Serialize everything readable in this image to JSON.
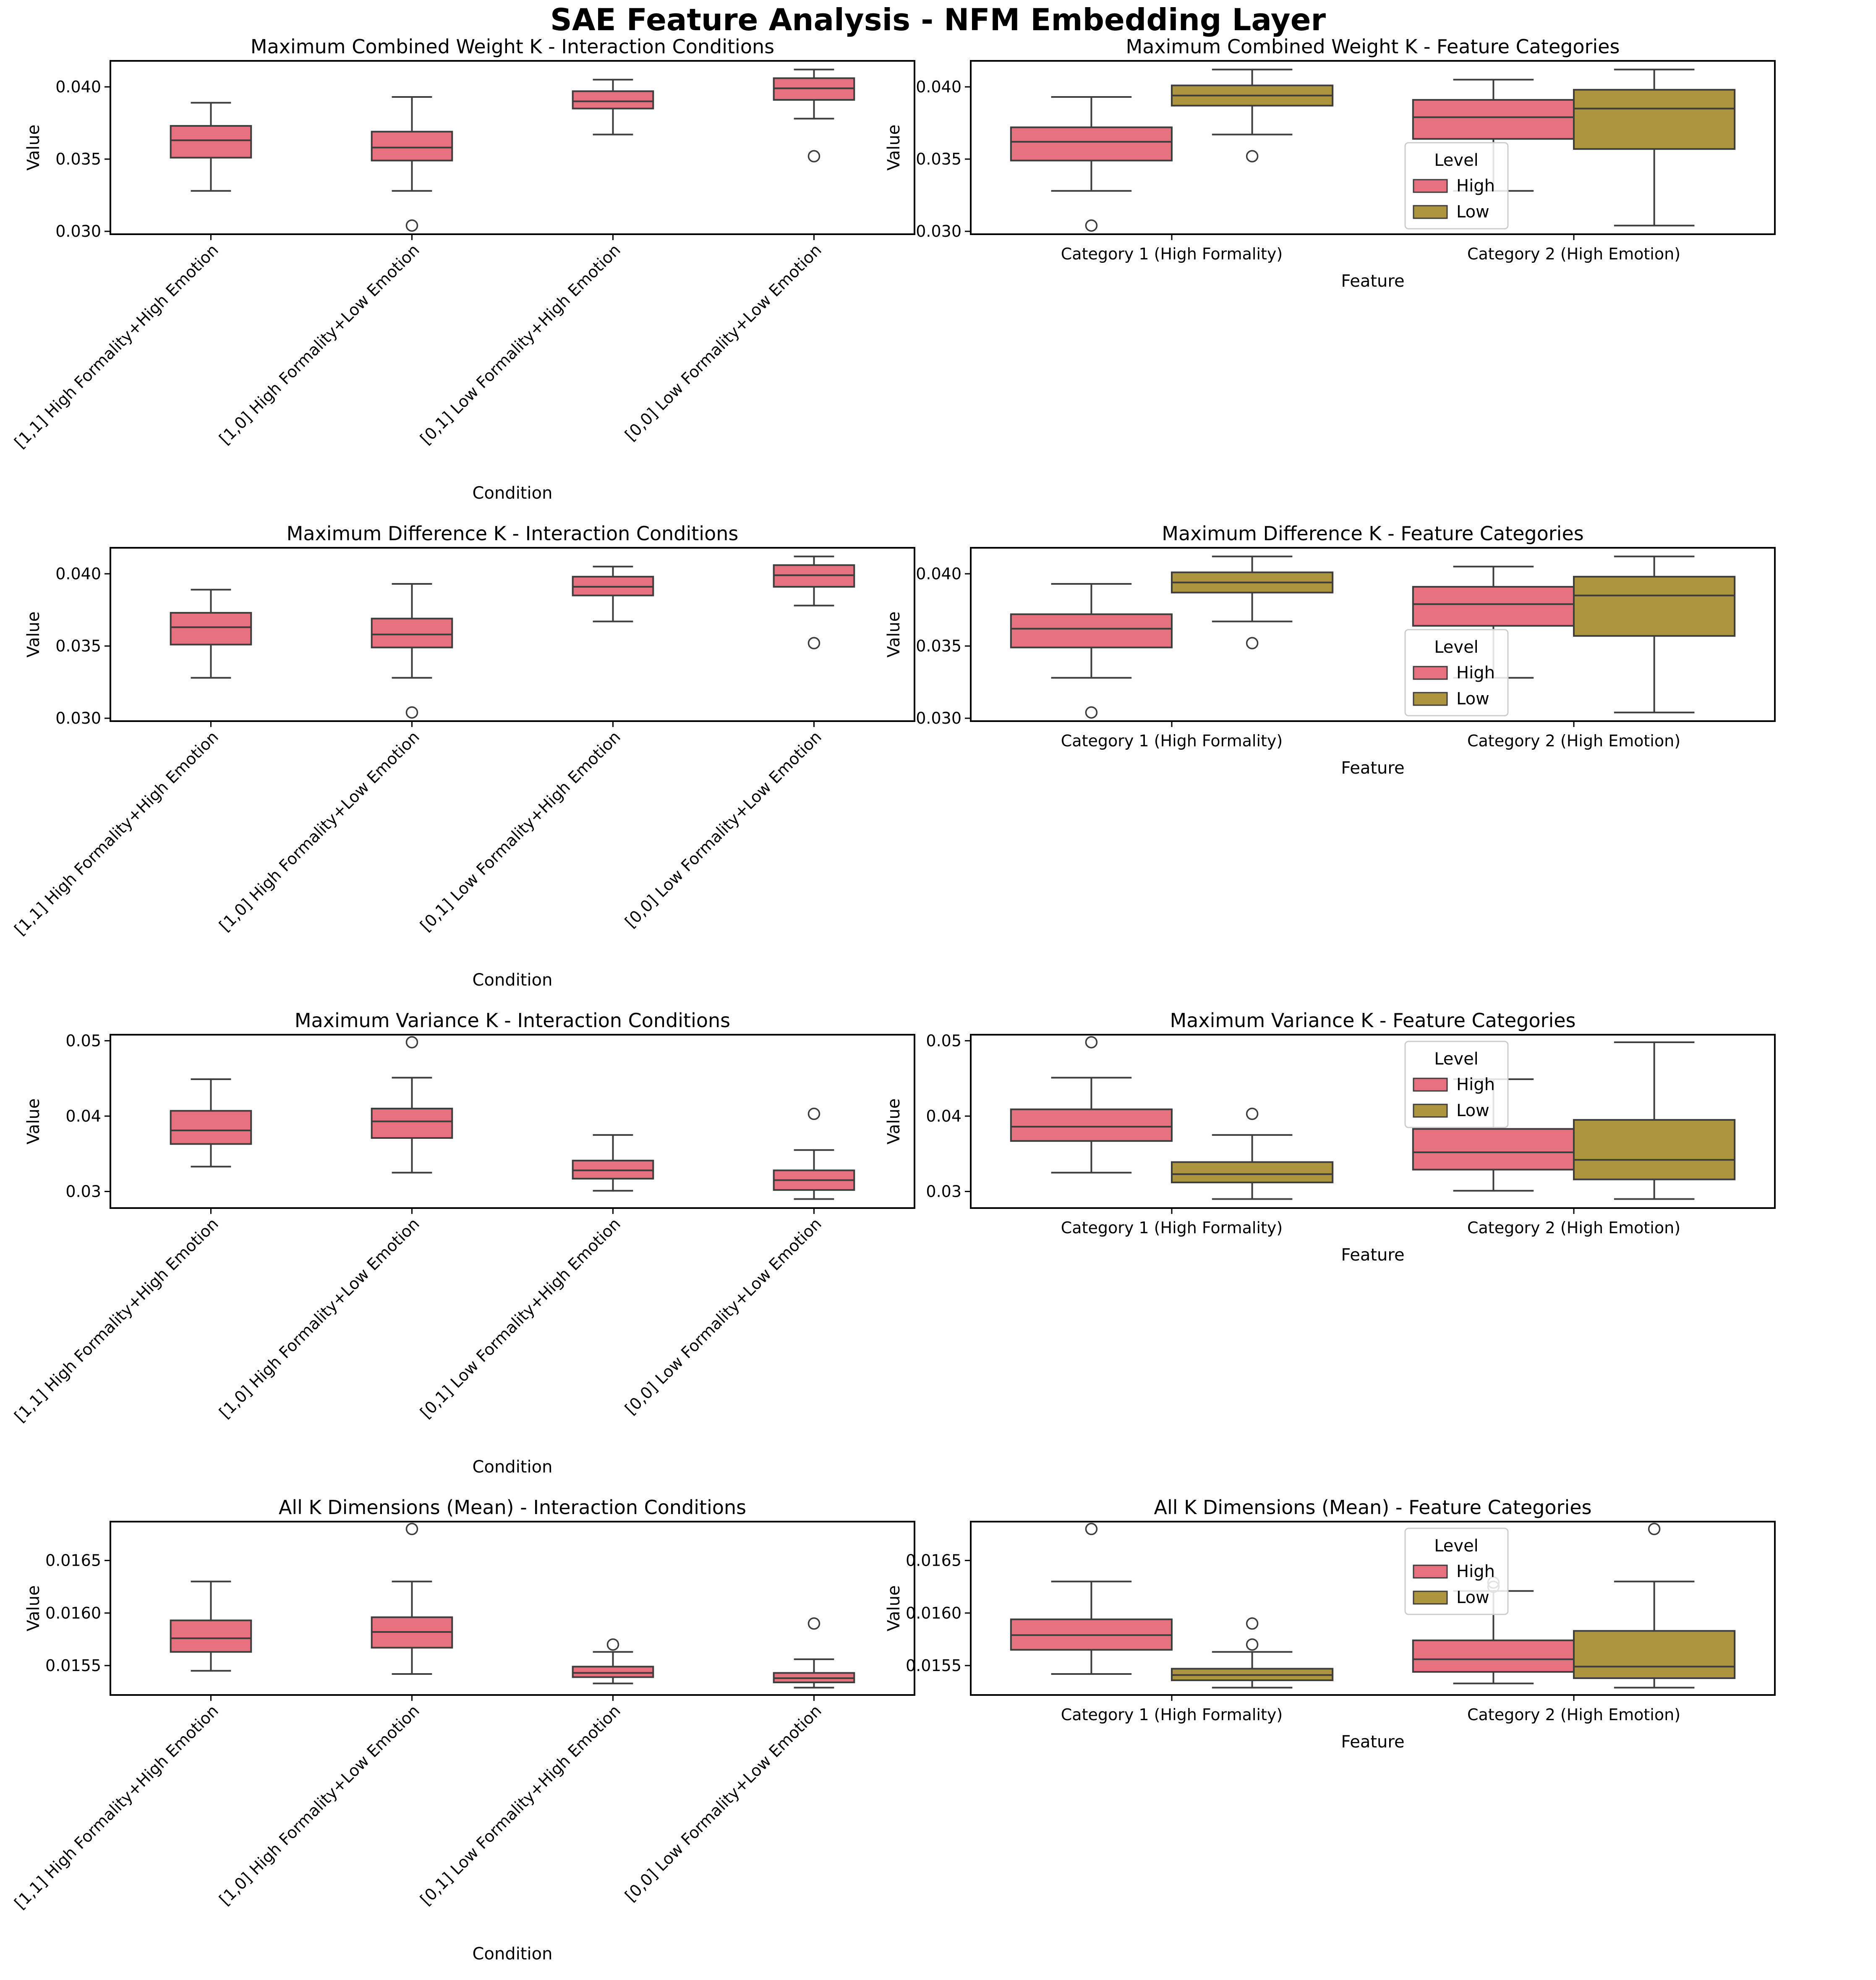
{
  "suptitle": "SAE Feature Analysis - NFM Embedding Layer",
  "colors": {
    "high": "#e8717f",
    "low": "#ad943e",
    "line": "#3d3d3d",
    "axes": "#000000"
  },
  "chart_data": [
    {
      "type": "box",
      "id": "r0c0",
      "title": "Maximum Combined Weight K - Interaction Conditions",
      "xlabel": "Condition",
      "ylabel": "Value",
      "ylim": [
        0.0298,
        0.0418
      ],
      "yticks": [
        "0.030",
        "0.035",
        "0.040"
      ],
      "ytick_values": [
        0.03,
        0.035,
        0.04
      ],
      "rotate_xticks": true,
      "categories": [
        "[1,1] High Formality+High Emotion",
        "[1,0] High Formality+Low Emotion",
        "[0,1] Low Formality+High Emotion",
        "[0,0] Low Formality+Low Emotion"
      ],
      "boxes": [
        {
          "cat": 0,
          "hue": "high",
          "whislo": 0.0328,
          "q1": 0.0351,
          "med": 0.0363,
          "q3": 0.0373,
          "whishi": 0.0389,
          "fliers": []
        },
        {
          "cat": 1,
          "hue": "high",
          "whislo": 0.0328,
          "q1": 0.0349,
          "med": 0.0358,
          "q3": 0.0369,
          "whishi": 0.0393,
          "fliers": [
            0.0304
          ]
        },
        {
          "cat": 2,
          "hue": "high",
          "whislo": 0.0367,
          "q1": 0.0385,
          "med": 0.039,
          "q3": 0.0397,
          "whishi": 0.0405,
          "fliers": []
        },
        {
          "cat": 3,
          "hue": "high",
          "whislo": 0.0378,
          "q1": 0.0391,
          "med": 0.0399,
          "q3": 0.0406,
          "whishi": 0.0412,
          "fliers": [
            0.0352
          ]
        }
      ]
    },
    {
      "type": "box",
      "id": "r0c1",
      "title": "Maximum Combined Weight K - Feature Categories",
      "xlabel": "Feature",
      "ylabel": "Value",
      "ylim": [
        0.0298,
        0.0418
      ],
      "yticks": [
        "0.030",
        "0.035",
        "0.040"
      ],
      "ytick_values": [
        0.03,
        0.035,
        0.04
      ],
      "rotate_xticks": false,
      "categories": [
        "Category 1 (High Formality)",
        "Category 2 (High Emotion)"
      ],
      "legend": {
        "title": "Level",
        "entries": [
          "High",
          "Low"
        ]
      },
      "boxes": [
        {
          "cat": 0,
          "hue": "high",
          "whislo": 0.0328,
          "q1": 0.0349,
          "med": 0.0362,
          "q3": 0.0372,
          "whishi": 0.0393,
          "fliers": [
            0.0304
          ]
        },
        {
          "cat": 0,
          "hue": "low",
          "whislo": 0.0367,
          "q1": 0.0387,
          "med": 0.0394,
          "q3": 0.0401,
          "whishi": 0.0412,
          "fliers": [
            0.0352
          ]
        },
        {
          "cat": 1,
          "hue": "high",
          "whislo": 0.0328,
          "q1": 0.0364,
          "med": 0.0379,
          "q3": 0.0391,
          "whishi": 0.0405,
          "fliers": []
        },
        {
          "cat": 1,
          "hue": "low",
          "whislo": 0.0304,
          "q1": 0.0357,
          "med": 0.0385,
          "q3": 0.0398,
          "whishi": 0.0412,
          "fliers": []
        }
      ]
    },
    {
      "type": "box",
      "id": "r1c0",
      "title": "Maximum Difference K - Interaction Conditions",
      "xlabel": "Condition",
      "ylabel": "Value",
      "ylim": [
        0.0298,
        0.0418
      ],
      "yticks": [
        "0.030",
        "0.035",
        "0.040"
      ],
      "ytick_values": [
        0.03,
        0.035,
        0.04
      ],
      "rotate_xticks": true,
      "categories": [
        "[1,1] High Formality+High Emotion",
        "[1,0] High Formality+Low Emotion",
        "[0,1] Low Formality+High Emotion",
        "[0,0] Low Formality+Low Emotion"
      ],
      "boxes": [
        {
          "cat": 0,
          "hue": "high",
          "whislo": 0.0328,
          "q1": 0.0351,
          "med": 0.0363,
          "q3": 0.0373,
          "whishi": 0.0389,
          "fliers": []
        },
        {
          "cat": 1,
          "hue": "high",
          "whislo": 0.0328,
          "q1": 0.0349,
          "med": 0.0358,
          "q3": 0.0369,
          "whishi": 0.0393,
          "fliers": [
            0.0304
          ]
        },
        {
          "cat": 2,
          "hue": "high",
          "whislo": 0.0367,
          "q1": 0.0385,
          "med": 0.0391,
          "q3": 0.0398,
          "whishi": 0.0405,
          "fliers": []
        },
        {
          "cat": 3,
          "hue": "high",
          "whislo": 0.0378,
          "q1": 0.0391,
          "med": 0.0399,
          "q3": 0.0406,
          "whishi": 0.0412,
          "fliers": [
            0.0352
          ]
        }
      ]
    },
    {
      "type": "box",
      "id": "r1c1",
      "title": "Maximum Difference K - Feature Categories",
      "xlabel": "Feature",
      "ylabel": "Value",
      "ylim": [
        0.0298,
        0.0418
      ],
      "yticks": [
        "0.030",
        "0.035",
        "0.040"
      ],
      "ytick_values": [
        0.03,
        0.035,
        0.04
      ],
      "rotate_xticks": false,
      "categories": [
        "Category 1 (High Formality)",
        "Category 2 (High Emotion)"
      ],
      "legend": {
        "title": "Level",
        "entries": [
          "High",
          "Low"
        ]
      },
      "boxes": [
        {
          "cat": 0,
          "hue": "high",
          "whislo": 0.0328,
          "q1": 0.0349,
          "med": 0.0362,
          "q3": 0.0372,
          "whishi": 0.0393,
          "fliers": [
            0.0304
          ]
        },
        {
          "cat": 0,
          "hue": "low",
          "whislo": 0.0367,
          "q1": 0.0387,
          "med": 0.0394,
          "q3": 0.0401,
          "whishi": 0.0412,
          "fliers": [
            0.0352
          ]
        },
        {
          "cat": 1,
          "hue": "high",
          "whislo": 0.0328,
          "q1": 0.0364,
          "med": 0.0379,
          "q3": 0.0391,
          "whishi": 0.0405,
          "fliers": []
        },
        {
          "cat": 1,
          "hue": "low",
          "whislo": 0.0304,
          "q1": 0.0357,
          "med": 0.0385,
          "q3": 0.0398,
          "whishi": 0.0412,
          "fliers": []
        }
      ]
    },
    {
      "type": "box",
      "id": "r2c0",
      "title": "Maximum Variance K - Interaction Conditions",
      "xlabel": "Condition",
      "ylabel": "Value",
      "ylim": [
        0.0278,
        0.0508
      ],
      "yticks": [
        "0.03",
        "0.04",
        "0.05"
      ],
      "ytick_values": [
        0.03,
        0.04,
        0.05
      ],
      "rotate_xticks": true,
      "categories": [
        "[1,1] High Formality+High Emotion",
        "[1,0] High Formality+Low Emotion",
        "[0,1] Low Formality+High Emotion",
        "[0,0] Low Formality+Low Emotion"
      ],
      "boxes": [
        {
          "cat": 0,
          "hue": "high",
          "whislo": 0.0333,
          "q1": 0.0363,
          "med": 0.0381,
          "q3": 0.0407,
          "whishi": 0.0449,
          "fliers": []
        },
        {
          "cat": 1,
          "hue": "high",
          "whislo": 0.0325,
          "q1": 0.0371,
          "med": 0.0393,
          "q3": 0.041,
          "whishi": 0.0451,
          "fliers": [
            0.0498
          ]
        },
        {
          "cat": 2,
          "hue": "high",
          "whislo": 0.0301,
          "q1": 0.0317,
          "med": 0.0328,
          "q3": 0.0341,
          "whishi": 0.0375,
          "fliers": []
        },
        {
          "cat": 3,
          "hue": "high",
          "whislo": 0.029,
          "q1": 0.0302,
          "med": 0.0315,
          "q3": 0.0328,
          "whishi": 0.0355,
          "fliers": [
            0.0403
          ]
        }
      ]
    },
    {
      "type": "box",
      "id": "r2c1",
      "title": "Maximum Variance K - Feature Categories",
      "xlabel": "Feature",
      "ylabel": "Value",
      "ylim": [
        0.0278,
        0.0508
      ],
      "yticks": [
        "0.03",
        "0.04",
        "0.05"
      ],
      "ytick_values": [
        0.03,
        0.04,
        0.05
      ],
      "rotate_xticks": false,
      "categories": [
        "Category 1 (High Formality)",
        "Category 2 (High Emotion)"
      ],
      "legend": {
        "title": "Level",
        "entries": [
          "High",
          "Low"
        ]
      },
      "boxes": [
        {
          "cat": 0,
          "hue": "high",
          "whislo": 0.0325,
          "q1": 0.0367,
          "med": 0.0386,
          "q3": 0.0409,
          "whishi": 0.0451,
          "fliers": [
            0.0498
          ]
        },
        {
          "cat": 0,
          "hue": "low",
          "whislo": 0.029,
          "q1": 0.0312,
          "med": 0.0323,
          "q3": 0.0339,
          "whishi": 0.0375,
          "fliers": [
            0.0403
          ]
        },
        {
          "cat": 1,
          "hue": "high",
          "whislo": 0.0301,
          "q1": 0.0329,
          "med": 0.0352,
          "q3": 0.0383,
          "whishi": 0.0449,
          "fliers": []
        },
        {
          "cat": 1,
          "hue": "low",
          "whislo": 0.029,
          "q1": 0.0316,
          "med": 0.0342,
          "q3": 0.0395,
          "whishi": 0.0498,
          "fliers": []
        }
      ]
    },
    {
      "type": "box",
      "id": "r3c0",
      "title": "All K Dimensions (Mean) - Interaction Conditions",
      "xlabel": "Condition",
      "ylabel": "Value",
      "ylim": [
        0.01522,
        0.01687
      ],
      "yticks": [
        "0.0155",
        "0.0160",
        "0.0165"
      ],
      "ytick_values": [
        0.0155,
        0.016,
        0.0165
      ],
      "rotate_xticks": true,
      "categories": [
        "[1,1] High Formality+High Emotion",
        "[1,0] High Formality+Low Emotion",
        "[0,1] Low Formality+High Emotion",
        "[0,0] Low Formality+Low Emotion"
      ],
      "boxes": [
        {
          "cat": 0,
          "hue": "high",
          "whislo": 0.01545,
          "q1": 0.01563,
          "med": 0.01576,
          "q3": 0.01593,
          "whishi": 0.0163,
          "fliers": []
        },
        {
          "cat": 1,
          "hue": "high",
          "whislo": 0.01542,
          "q1": 0.01567,
          "med": 0.01582,
          "q3": 0.01596,
          "whishi": 0.0163,
          "fliers": [
            0.0168
          ]
        },
        {
          "cat": 2,
          "hue": "high",
          "whislo": 0.01533,
          "q1": 0.01539,
          "med": 0.01543,
          "q3": 0.01549,
          "whishi": 0.01563,
          "fliers": [
            0.0157
          ]
        },
        {
          "cat": 3,
          "hue": "high",
          "whislo": 0.01529,
          "q1": 0.01534,
          "med": 0.01538,
          "q3": 0.01543,
          "whishi": 0.01556,
          "fliers": [
            0.0159
          ]
        }
      ]
    },
    {
      "type": "box",
      "id": "r3c1",
      "title": "All K Dimensions (Mean) - Feature Categories",
      "xlabel": "Feature",
      "ylabel": "Value",
      "ylim": [
        0.01522,
        0.01687
      ],
      "yticks": [
        "0.0155",
        "0.0160",
        "0.0165"
      ],
      "ytick_values": [
        0.0155,
        0.016,
        0.0165
      ],
      "rotate_xticks": false,
      "categories": [
        "Category 1 (High Formality)",
        "Category 2 (High Emotion)"
      ],
      "legend": {
        "title": "Level",
        "entries": [
          "High",
          "Low"
        ]
      },
      "boxes": [
        {
          "cat": 0,
          "hue": "high",
          "whislo": 0.01542,
          "q1": 0.01565,
          "med": 0.01579,
          "q3": 0.01594,
          "whishi": 0.0163,
          "fliers": [
            0.0168
          ]
        },
        {
          "cat": 0,
          "hue": "low",
          "whislo": 0.01529,
          "q1": 0.01536,
          "med": 0.01541,
          "q3": 0.01547,
          "whishi": 0.01563,
          "fliers": [
            0.0157,
            0.0159
          ]
        },
        {
          "cat": 1,
          "hue": "high",
          "whislo": 0.01533,
          "q1": 0.01544,
          "med": 0.01556,
          "q3": 0.01574,
          "whishi": 0.01621,
          "fliers": [
            0.01625,
            0.01629
          ]
        },
        {
          "cat": 1,
          "hue": "low",
          "whislo": 0.01529,
          "q1": 0.01538,
          "med": 0.01549,
          "q3": 0.01583,
          "whishi": 0.0163,
          "fliers": [
            0.0168
          ]
        }
      ]
    }
  ]
}
